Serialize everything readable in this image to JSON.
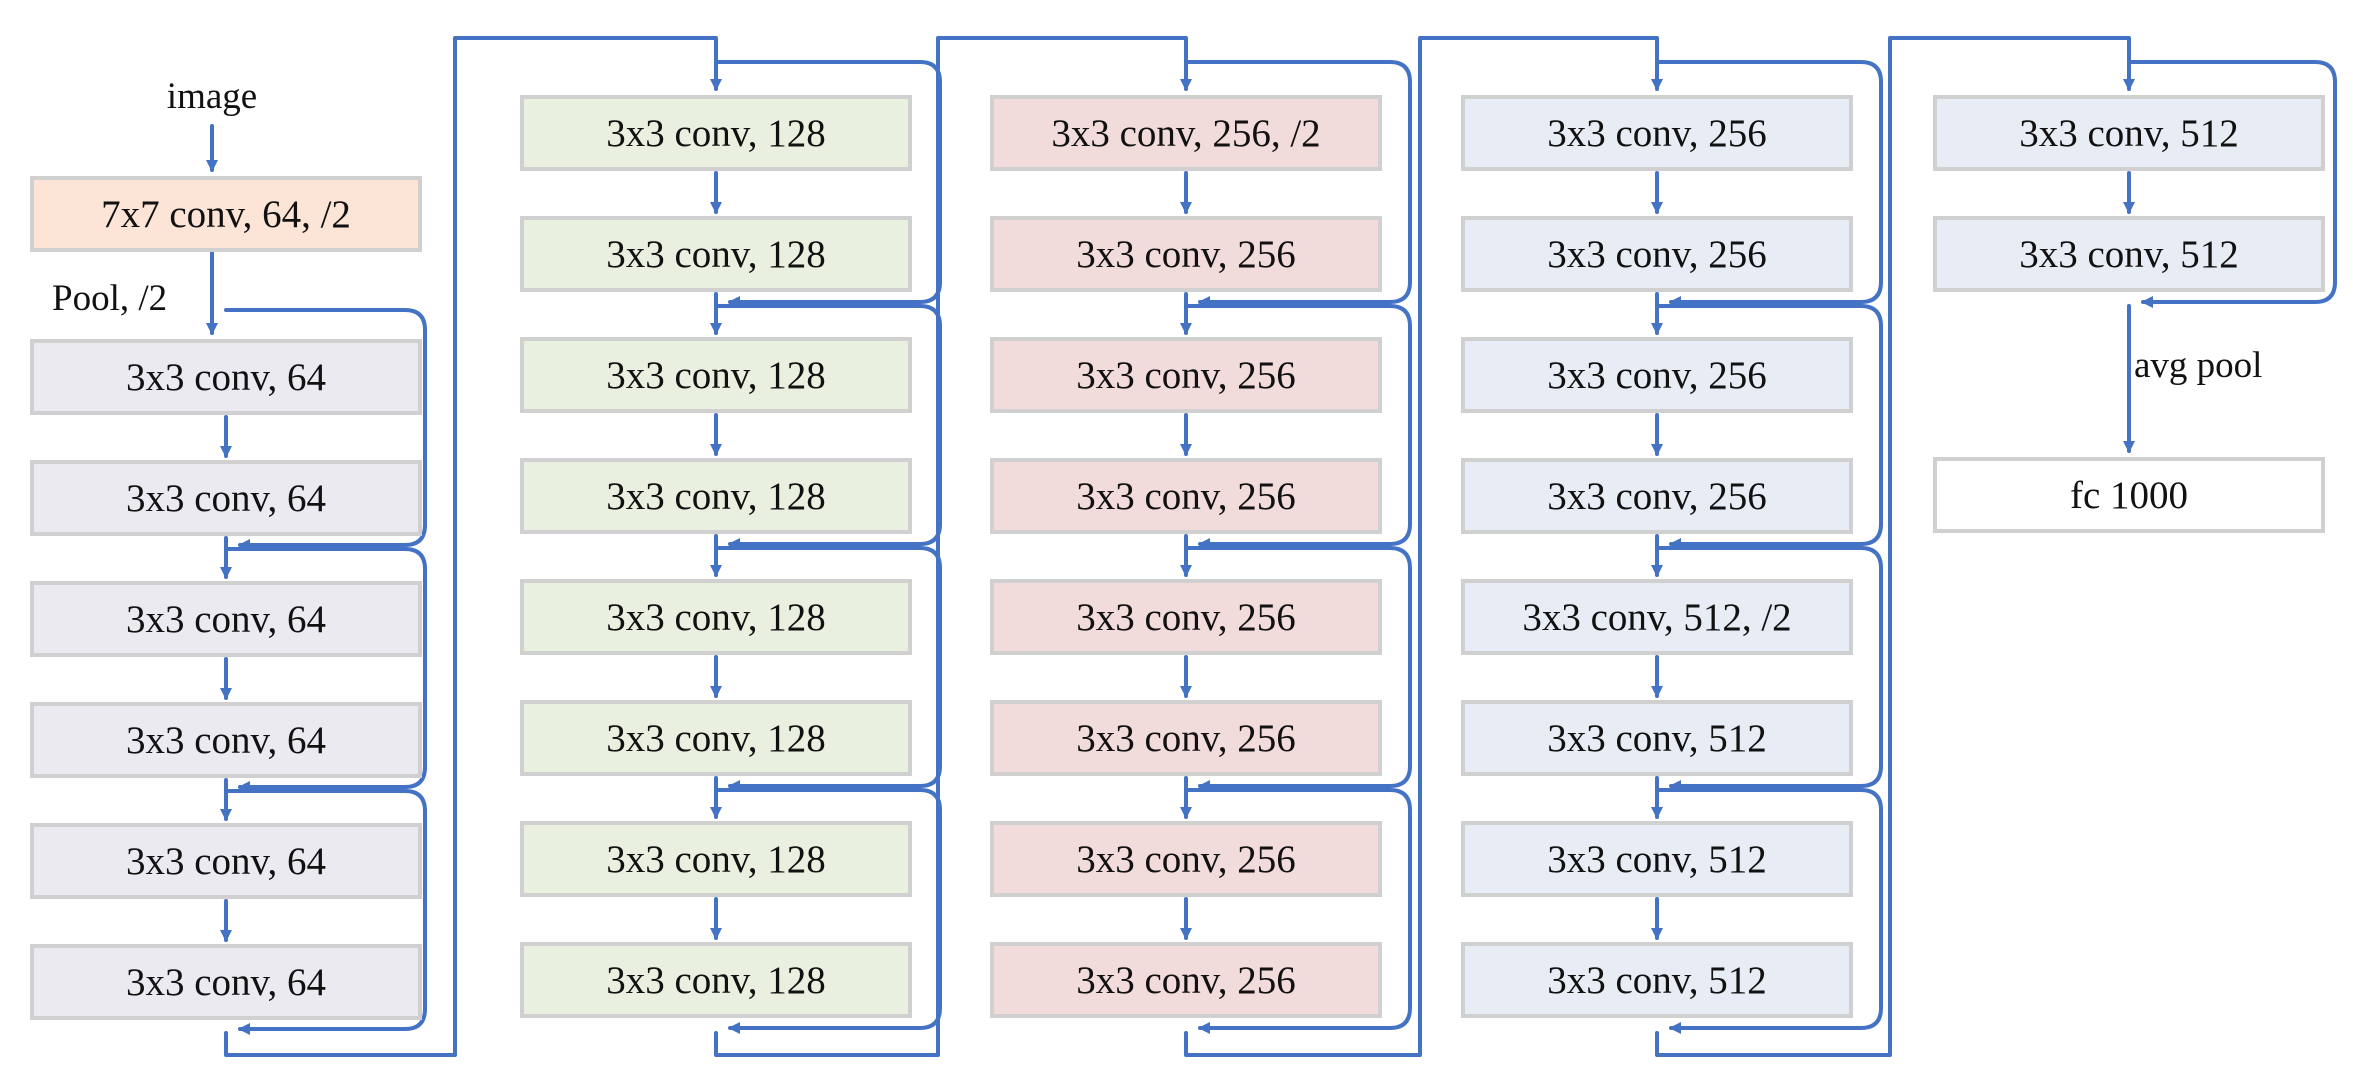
{
  "labels": {
    "image": "image",
    "pool": "Pool, /2",
    "avg_pool": "avg pool"
  },
  "colors": {
    "arrow": "#4472C4",
    "box_border": "#D0D0D0",
    "stem_fill": "#FCE4D6",
    "stage1_fill": "#ECEAF1",
    "stage2_fill": "#EAF0E0",
    "stage3_fill": "#F2DCDB",
    "stage4_fill": "#E8EDF5",
    "fc_fill": "#FFFFFF"
  },
  "stem": {
    "label": "7x7 conv, 64, /2"
  },
  "columns": [
    {
      "name": "stage-64",
      "layers": [
        "3x3 conv, 64",
        "3x3 conv, 64",
        "3x3 conv, 64",
        "3x3 conv, 64",
        "3x3 conv, 64",
        "3x3 conv, 64"
      ]
    },
    {
      "name": "stage-128",
      "layers": [
        "3x3 conv, 128",
        "3x3 conv, 128",
        "3x3 conv, 128",
        "3x3 conv, 128",
        "3x3 conv, 128",
        "3x3 conv, 128",
        "3x3 conv, 128",
        "3x3 conv, 128"
      ]
    },
    {
      "name": "stage-256",
      "layers": [
        "3x3 conv, 256, /2",
        "3x3 conv, 256",
        "3x3 conv, 256",
        "3x3 conv, 256",
        "3x3 conv, 256",
        "3x3 conv, 256",
        "3x3 conv, 256",
        "3x3 conv, 256"
      ]
    },
    {
      "name": "stage-256-512",
      "layers": [
        "3x3 conv, 256",
        "3x3 conv, 256",
        "3x3 conv, 256",
        "3x3 conv, 256",
        "3x3 conv, 512, /2",
        "3x3 conv, 512",
        "3x3 conv, 512",
        "3x3 conv, 512"
      ]
    },
    {
      "name": "stage-512",
      "layers": [
        "3x3 conv, 512",
        "3x3 conv, 512"
      ]
    }
  ],
  "fc": {
    "label": "fc 1000"
  }
}
